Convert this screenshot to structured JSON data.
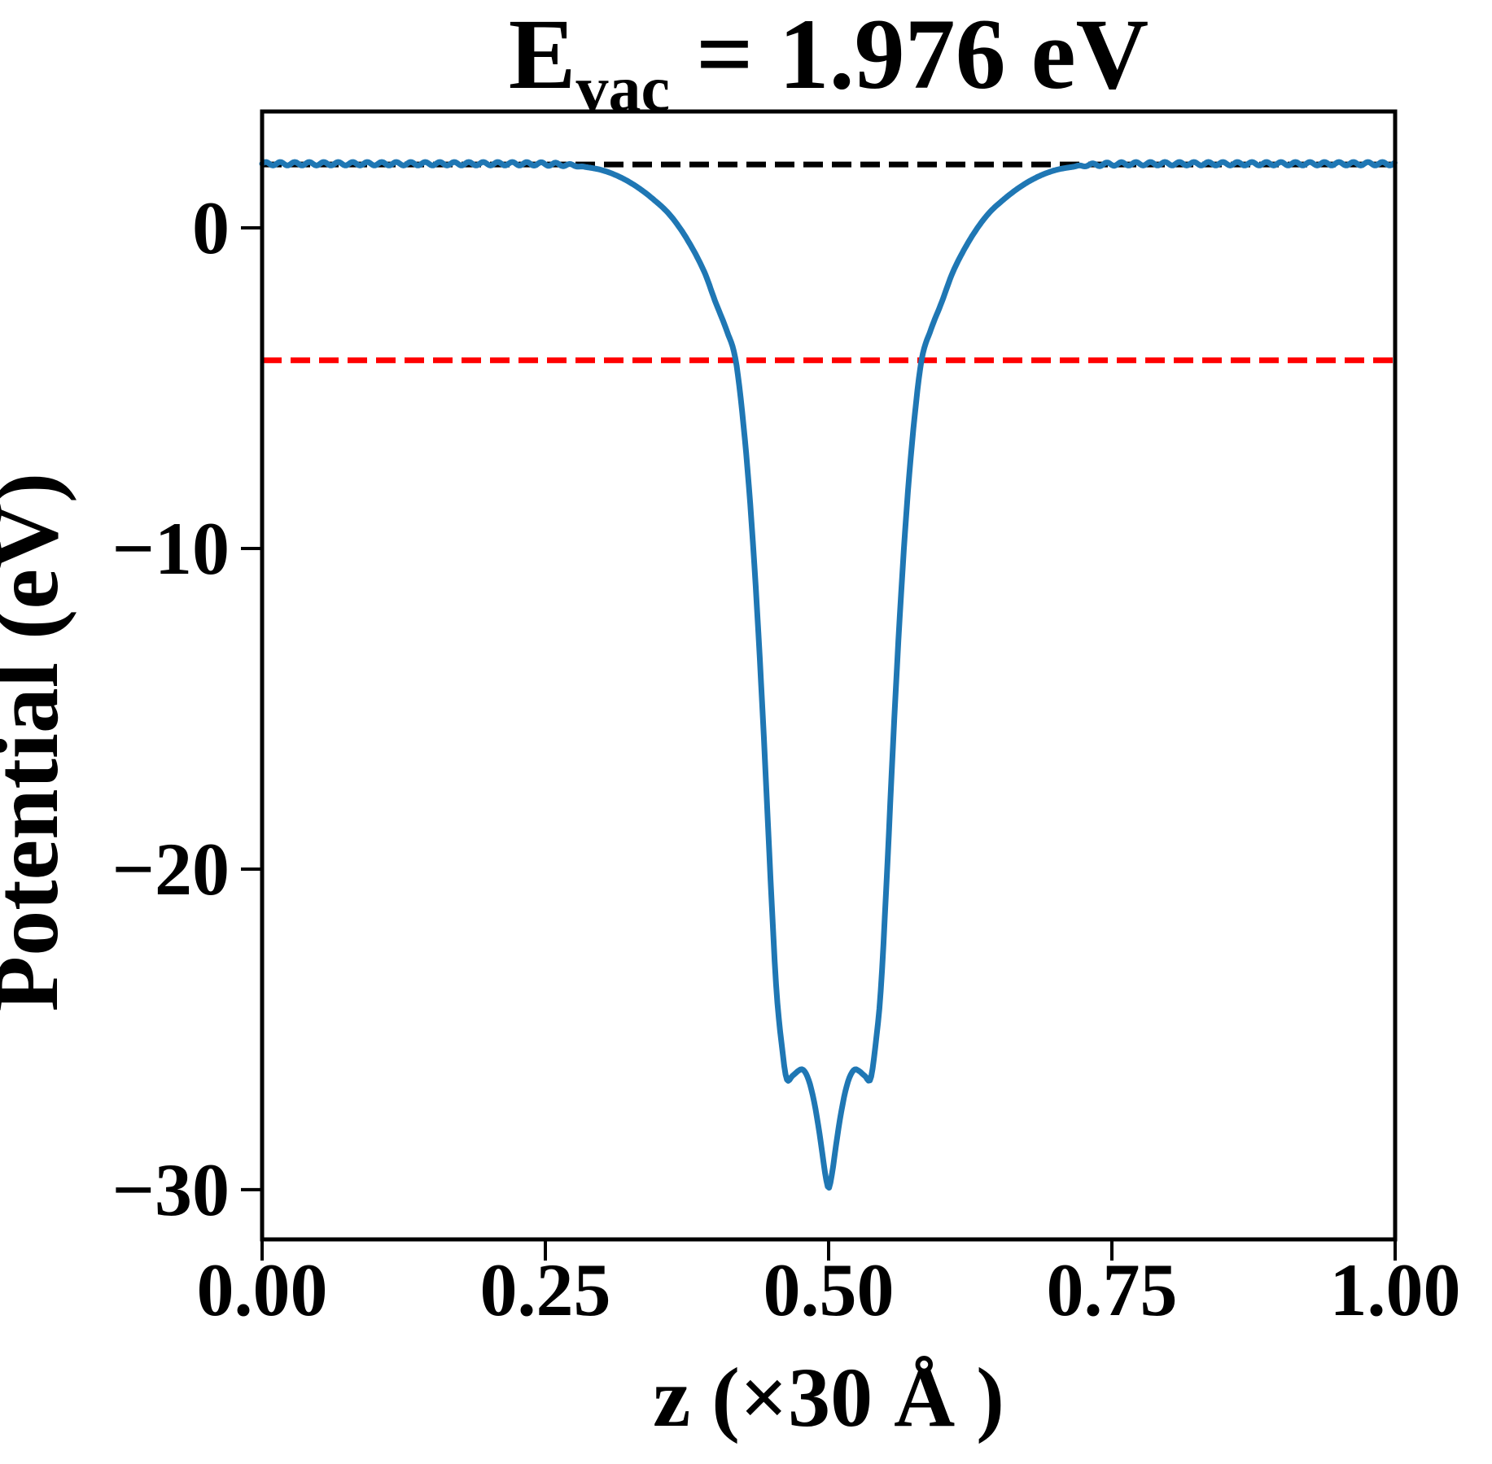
{
  "title": {
    "symbol": "E",
    "subscript": "vac",
    "rest": "= 1.976 eV",
    "full": "E_vac = 1.976 eV"
  },
  "axes": {
    "xlabel": "z (×30 Å )",
    "ylabel": "Potential (eV)",
    "x_tick_labels": [
      "0.00",
      "0.25",
      "0.50",
      "0.75",
      "1.00"
    ],
    "x_tick_values": [
      0,
      0.25,
      0.5,
      0.75,
      1.0
    ],
    "y_tick_labels": [
      "0",
      "−10",
      "−20",
      "−30"
    ],
    "y_tick_values": [
      0,
      -10,
      -20,
      -30
    ]
  },
  "colors": {
    "curve": "#1f77b4",
    "vacuum_line": "#000000",
    "fermi_line": "#ff0000",
    "axis": "#000000",
    "background": "#ffffff"
  },
  "chart_data": {
    "type": "line",
    "title": "E_vac = 1.976 eV",
    "xlabel": "z (×30 Å )",
    "ylabel": "Potential (eV)",
    "xlim": [
      0,
      1
    ],
    "ylim": [
      -31.55,
      3.63
    ],
    "grid": false,
    "legend": "none",
    "vacuum_level_eV": 1.976,
    "fermi_level_eV": -4.13,
    "series": [
      {
        "name": "planar-averaged-potential",
        "color": "#1f77b4",
        "style": "solid",
        "points": [
          [
            0.0,
            2.0
          ],
          [
            0.06,
            2.0
          ],
          [
            0.12,
            2.0
          ],
          [
            0.18,
            2.0
          ],
          [
            0.22,
            2.0
          ],
          [
            0.25,
            1.99
          ],
          [
            0.27,
            1.96
          ],
          [
            0.285,
            1.9
          ],
          [
            0.3,
            1.8
          ],
          [
            0.315,
            1.6
          ],
          [
            0.33,
            1.3
          ],
          [
            0.345,
            0.9
          ],
          [
            0.36,
            0.4
          ],
          [
            0.375,
            -0.35
          ],
          [
            0.39,
            -1.35
          ],
          [
            0.4,
            -2.3
          ],
          [
            0.41,
            -3.2
          ],
          [
            0.418,
            -4.13
          ],
          [
            0.425,
            -6.2
          ],
          [
            0.431,
            -8.7
          ],
          [
            0.437,
            -12.0
          ],
          [
            0.443,
            -16.0
          ],
          [
            0.449,
            -20.5
          ],
          [
            0.454,
            -23.8
          ],
          [
            0.459,
            -25.6
          ],
          [
            0.463,
            -26.55
          ],
          [
            0.468,
            -26.45
          ],
          [
            0.473,
            -26.3
          ],
          [
            0.477,
            -26.25
          ],
          [
            0.481,
            -26.45
          ],
          [
            0.485,
            -26.9
          ],
          [
            0.489,
            -27.6
          ],
          [
            0.493,
            -28.5
          ],
          [
            0.497,
            -29.5
          ],
          [
            0.5,
            -29.95
          ],
          [
            0.503,
            -29.5
          ],
          [
            0.507,
            -28.5
          ],
          [
            0.511,
            -27.6
          ],
          [
            0.515,
            -26.9
          ],
          [
            0.519,
            -26.45
          ],
          [
            0.523,
            -26.25
          ],
          [
            0.527,
            -26.3
          ],
          [
            0.532,
            -26.45
          ],
          [
            0.537,
            -26.55
          ],
          [
            0.541,
            -25.6
          ],
          [
            0.546,
            -23.8
          ],
          [
            0.551,
            -20.5
          ],
          [
            0.557,
            -16.0
          ],
          [
            0.563,
            -12.0
          ],
          [
            0.569,
            -8.7
          ],
          [
            0.575,
            -6.2
          ],
          [
            0.582,
            -4.13
          ],
          [
            0.59,
            -3.2
          ],
          [
            0.6,
            -2.3
          ],
          [
            0.61,
            -1.35
          ],
          [
            0.625,
            -0.35
          ],
          [
            0.64,
            0.4
          ],
          [
            0.655,
            0.9
          ],
          [
            0.67,
            1.3
          ],
          [
            0.685,
            1.6
          ],
          [
            0.7,
            1.8
          ],
          [
            0.715,
            1.9
          ],
          [
            0.73,
            1.96
          ],
          [
            0.75,
            1.99
          ],
          [
            0.78,
            2.0
          ],
          [
            0.84,
            2.0
          ],
          [
            0.9,
            2.0
          ],
          [
            0.95,
            2.0
          ],
          [
            1.0,
            2.0
          ]
        ]
      },
      {
        "name": "vacuum-level-line",
        "color": "#000000",
        "style": "dashed",
        "y": 1.976
      },
      {
        "name": "fermi-level-line",
        "color": "#ff0000",
        "style": "dashed",
        "y": -4.13
      }
    ],
    "vacuum_wiggle": {
      "amplitude": 0.055,
      "period": 0.0128,
      "fade_start": 1.9,
      "fade_full": 1.98
    }
  }
}
